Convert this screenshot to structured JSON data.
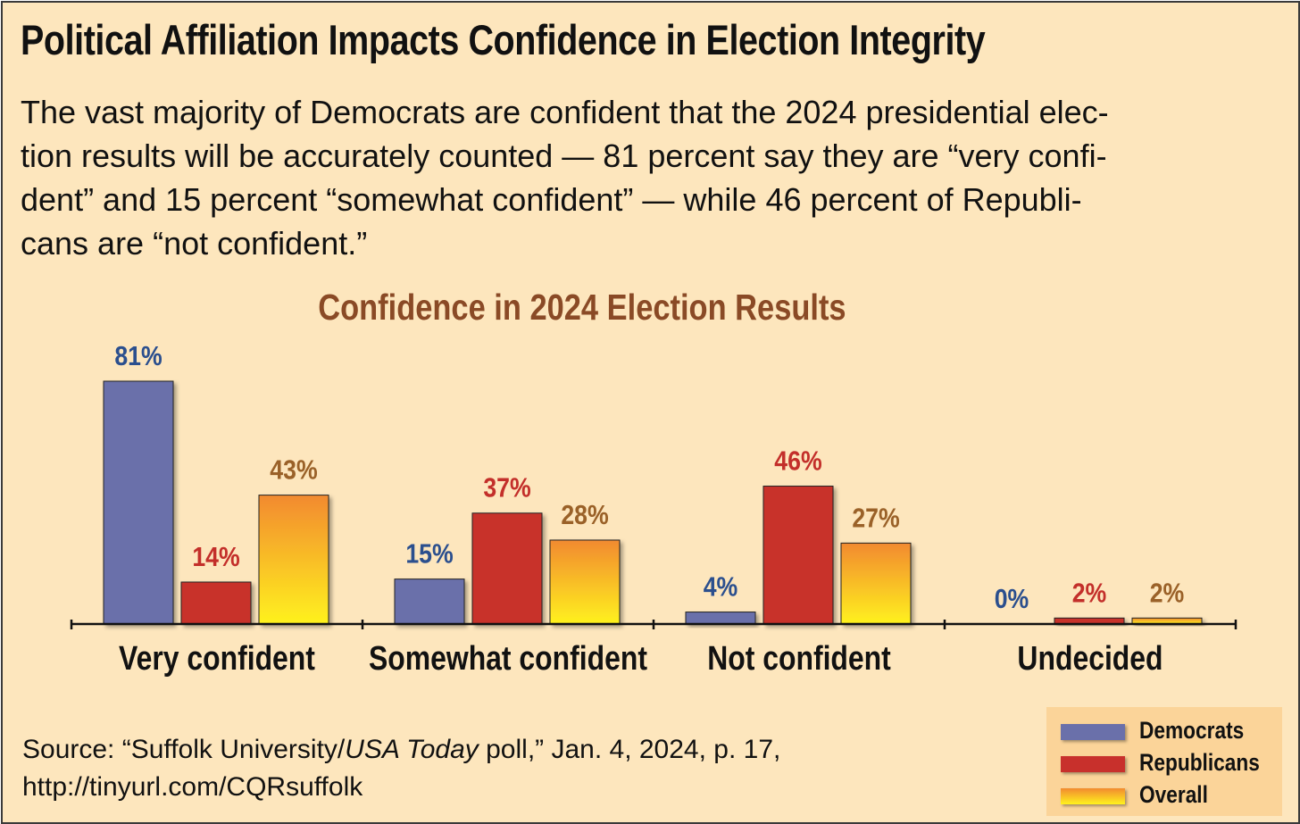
{
  "headline": "Political Affiliation Impacts Confidence in Election Integrity",
  "subtitle_lines": [
    "The vast majority of Democrats are confident that the 2024 presidential elec-",
    "tion results will be accurately counted — 81 percent say they are “very confi-",
    "dent” and 15 percent “somewhat confident” — while 46 percent of Republi-",
    "cans are “not confident.”"
  ],
  "source": {
    "prefix": "Source: “Suffolk University/",
    "publication": "USA Today",
    "suffix": " poll,” Jan. 4, 2024, p. 17,",
    "url": "http://tinyurl.com/CQRsuffolk"
  },
  "colors": {
    "background": "#fde6bd",
    "title": "#8a4a26",
    "democrats": "#6a70aa",
    "republicans": "#c8302c",
    "overall_top": "#f28a30",
    "overall_bottom": "#fff21e",
    "dem_label": "#2b4f8e",
    "rep_label": "#c32f2a",
    "overall_label": "#9a6128"
  },
  "chart_data": {
    "type": "bar",
    "title": "Confidence in 2024 Election Results",
    "categories": [
      "Very confident",
      "Somewhat confident",
      "Not confident",
      "Undecided"
    ],
    "series": [
      {
        "name": "Democrats",
        "values": [
          81,
          15,
          4,
          0
        ],
        "labels": [
          "81%",
          "15%",
          "4%",
          "0%"
        ]
      },
      {
        "name": "Republicans",
        "values": [
          14,
          37,
          46,
          2
        ],
        "labels": [
          "14%",
          "37%",
          "46%",
          "2%"
        ]
      },
      {
        "name": "Overall",
        "values": [
          43,
          28,
          27,
          2
        ],
        "labels": [
          "43%",
          "28%",
          "27%",
          "2%"
        ]
      }
    ],
    "unit": "%",
    "ylim": [
      0,
      81
    ],
    "grid": false,
    "legend_position": "bottom-right"
  }
}
